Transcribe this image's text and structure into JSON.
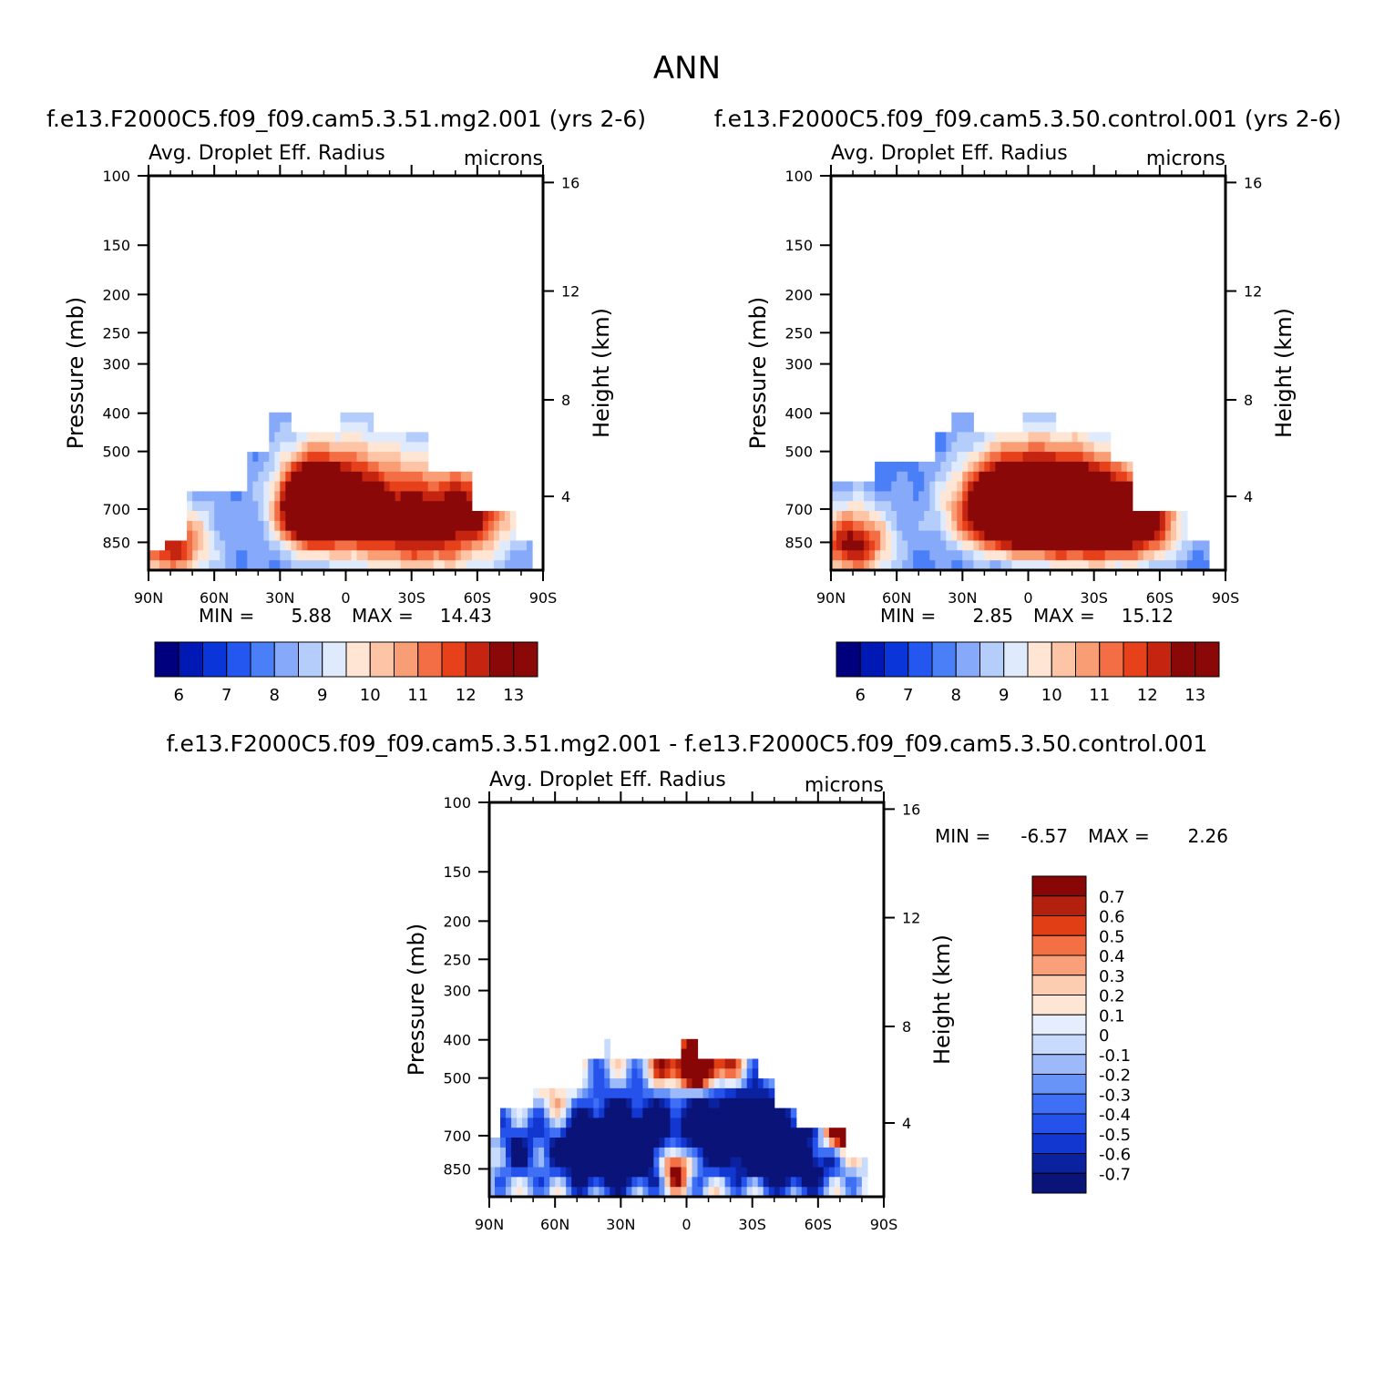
{
  "title": "ANN",
  "colors": {
    "abs": [
      "#00007f",
      "#0018b4",
      "#0a36d9",
      "#2456f0",
      "#4a7ff7",
      "#86a9fa",
      "#b5cdfb",
      "#dfeafc",
      "#ffe6d4",
      "#fdc4a5",
      "#f99e74",
      "#f36e44",
      "#e6411b",
      "#c42410",
      "#8a0808"
    ],
    "diff": [
      "#0a1378",
      "#0a22a0",
      "#1236d0",
      "#2452ea",
      "#3f6ff4",
      "#6893f7",
      "#9cb9fa",
      "#c8dbfc",
      "#e6eefd",
      "#ffe6d4",
      "#fdcdb2",
      "#f9a07a",
      "#f36f44",
      "#e23e16",
      "#b3210e",
      "#880606"
    ]
  },
  "chart_data": [
    {
      "type": "heatmap",
      "panel": "case",
      "title": "f.e13.F2000C5.f09_f09.cam5.3.51.mg2.001 (yrs 2-6)",
      "subtitle_left": "Avg. Droplet Eff. Radius",
      "subtitle_right": "microns",
      "xlabel": "",
      "ylabel": "Pressure (mb)",
      "ylabel_right": "Height (km)",
      "x_ticklabels": [
        "90N",
        "60N",
        "30N",
        "0",
        "30S",
        "60S",
        "90S"
      ],
      "y_ticklabels": [
        "100",
        "150",
        "200",
        "250",
        "300",
        "400",
        "500",
        "700",
        "850"
      ],
      "y_right_ticklabels": [
        "16",
        "12",
        "8",
        "4"
      ],
      "x": [
        90,
        60,
        30,
        0,
        -30,
        -60,
        -90
      ],
      "pressure_levels": [
        100,
        150,
        200,
        250,
        300,
        400,
        500,
        700,
        850
      ],
      "min_label": "MIN =",
      "min_value": "5.88",
      "max_label": "MAX =",
      "max_value": "14.43",
      "colorbar_ticks": [
        "6",
        "7",
        "8",
        "9",
        "10",
        "11",
        "12",
        "13"
      ],
      "levels": [
        6,
        6.5,
        7,
        7.5,
        8,
        8.5,
        9,
        9.5,
        10,
        10.5,
        11,
        11.5,
        12,
        12.5,
        13,
        13.5
      ],
      "blobs": [
        {
          "lat": 18,
          "p": 690,
          "amp": 7.5,
          "slat": 9,
          "sp": 110
        },
        {
          "lat": 2,
          "p": 680,
          "amp": 5.5,
          "slat": 14,
          "sp": 130
        },
        {
          "lat": -35,
          "p": 760,
          "amp": 5.3,
          "slat": 22,
          "sp": 160
        },
        {
          "lat": 80,
          "p": 860,
          "amp": 4.5,
          "slat": 12,
          "sp": 120
        },
        {
          "lat": -60,
          "p": 700,
          "amp": 2.5,
          "slat": 10,
          "sp": 100
        }
      ],
      "base_value": 8.0,
      "top_profile": [
        {
          "lat": 90,
          "p": 880
        },
        {
          "lat": 82,
          "p": 880
        },
        {
          "lat": 82,
          "p": 820
        },
        {
          "lat": 73,
          "p": 820
        },
        {
          "lat": 73,
          "p": 630
        },
        {
          "lat": 45,
          "p": 630
        },
        {
          "lat": 45,
          "p": 500
        },
        {
          "lat": 36,
          "p": 500
        },
        {
          "lat": 36,
          "p": 400
        },
        {
          "lat": 26,
          "p": 400
        },
        {
          "lat": 26,
          "p": 450
        },
        {
          "lat": 2,
          "p": 450
        },
        {
          "lat": 2,
          "p": 400
        },
        {
          "lat": -12,
          "p": 400
        },
        {
          "lat": -12,
          "p": 450
        },
        {
          "lat": -37,
          "p": 450
        },
        {
          "lat": -37,
          "p": 560
        },
        {
          "lat": -57,
          "p": 560
        },
        {
          "lat": -57,
          "p": 700
        },
        {
          "lat": -77,
          "p": 700
        },
        {
          "lat": -77,
          "p": 820
        },
        {
          "lat": -86,
          "p": 820
        },
        {
          "lat": -86,
          "p": 1000
        }
      ]
    },
    {
      "type": "heatmap",
      "panel": "control",
      "title": "f.e13.F2000C5.f09_f09.cam5.3.50.control.001 (yrs 2-6)",
      "subtitle_left": "Avg. Droplet Eff. Radius",
      "subtitle_right": "microns",
      "xlabel": "",
      "ylabel": "Pressure (mb)",
      "ylabel_right": "Height (km)",
      "x_ticklabels": [
        "90N",
        "60N",
        "30N",
        "0",
        "30S",
        "60S",
        "90S"
      ],
      "y_ticklabels": [
        "100",
        "150",
        "200",
        "250",
        "300",
        "400",
        "500",
        "700",
        "850"
      ],
      "y_right_ticklabels": [
        "16",
        "12",
        "8",
        "4"
      ],
      "x": [
        90,
        60,
        30,
        0,
        -30,
        -60,
        -90
      ],
      "pressure_levels": [
        100,
        150,
        200,
        250,
        300,
        400,
        500,
        700,
        850
      ],
      "min_label": "MIN =",
      "min_value": "2.85",
      "max_label": "MAX =",
      "max_value": "15.12",
      "colorbar_ticks": [
        "6",
        "7",
        "8",
        "9",
        "10",
        "11",
        "12",
        "13"
      ],
      "levels": [
        6,
        6.5,
        7,
        7.5,
        8,
        8.5,
        9,
        9.5,
        10,
        10.5,
        11,
        11.5,
        12,
        12.5,
        13,
        13.5
      ],
      "blobs": [
        {
          "lat": 10,
          "p": 700,
          "amp": 8.0,
          "slat": 16,
          "sp": 120
        },
        {
          "lat": -30,
          "p": 740,
          "amp": 7.0,
          "slat": 18,
          "sp": 140
        },
        {
          "lat": -10,
          "p": 680,
          "amp": 5.0,
          "slat": 18,
          "sp": 130
        },
        {
          "lat": 80,
          "p": 860,
          "amp": 5.0,
          "slat": 12,
          "sp": 120
        },
        {
          "lat": -55,
          "p": 760,
          "amp": 3.0,
          "slat": 12,
          "sp": 120
        }
      ],
      "base_value": 7.8,
      "top_profile": [
        {
          "lat": 90,
          "p": 600
        },
        {
          "lat": 70,
          "p": 600
        },
        {
          "lat": 70,
          "p": 520
        },
        {
          "lat": 43,
          "p": 520
        },
        {
          "lat": 43,
          "p": 450
        },
        {
          "lat": 35,
          "p": 450
        },
        {
          "lat": 35,
          "p": 400
        },
        {
          "lat": 25,
          "p": 400
        },
        {
          "lat": 25,
          "p": 450
        },
        {
          "lat": 2,
          "p": 450
        },
        {
          "lat": 2,
          "p": 400
        },
        {
          "lat": -12,
          "p": 400
        },
        {
          "lat": -12,
          "p": 450
        },
        {
          "lat": -37,
          "p": 450
        },
        {
          "lat": -37,
          "p": 520
        },
        {
          "lat": -47,
          "p": 520
        },
        {
          "lat": -47,
          "p": 690
        },
        {
          "lat": -73,
          "p": 690
        },
        {
          "lat": -73,
          "p": 820
        },
        {
          "lat": -83,
          "p": 820
        },
        {
          "lat": -83,
          "p": 1000
        }
      ]
    },
    {
      "type": "heatmap",
      "panel": "difference",
      "title": "f.e13.F2000C5.f09_f09.cam5.3.51.mg2.001 - f.e13.F2000C5.f09_f09.cam5.3.50.control.001",
      "subtitle_left": "Avg. Droplet Eff. Radius",
      "subtitle_right": "microns",
      "xlabel": "",
      "ylabel": "Pressure (mb)",
      "ylabel_right": "Height (km)",
      "x_ticklabels": [
        "90N",
        "60N",
        "30N",
        "0",
        "30S",
        "60S",
        "90S"
      ],
      "y_ticklabels": [
        "100",
        "150",
        "200",
        "250",
        "300",
        "400",
        "500",
        "700",
        "850"
      ],
      "y_right_ticklabels": [
        "16",
        "12",
        "8",
        "4"
      ],
      "x": [
        90,
        60,
        30,
        0,
        -30,
        -60,
        -90
      ],
      "pressure_levels": [
        100,
        150,
        200,
        250,
        300,
        400,
        500,
        700,
        850
      ],
      "min_label": "MIN =",
      "min_value": "-6.57",
      "max_label": "MAX =",
      "max_value": "2.26",
      "colorbar_ticks": [
        "0.7",
        "0.6",
        "0.5",
        "0.4",
        "0.3",
        "0.2",
        "0.1",
        "0",
        "-0.1",
        "-0.2",
        "-0.3",
        "-0.4",
        "-0.5",
        "-0.6",
        "-0.7"
      ],
      "levels": [
        -0.7,
        -0.6,
        -0.5,
        -0.4,
        -0.3,
        -0.2,
        -0.1,
        0,
        0.1,
        0.2,
        0.3,
        0.4,
        0.5,
        0.6,
        0.7
      ],
      "blobs": [
        {
          "lat": 35,
          "p": 760,
          "amp": -1.6,
          "slat": 18,
          "sp": 140
        },
        {
          "lat": -20,
          "p": 680,
          "amp": -1.4,
          "slat": 22,
          "sp": 130
        },
        {
          "lat": -50,
          "p": 820,
          "amp": -1.0,
          "slat": 14,
          "sp": 120
        },
        {
          "lat": 5,
          "p": 820,
          "amp": 1.5,
          "slat": 5,
          "sp": 80
        },
        {
          "lat": -5,
          "p": 470,
          "amp": 1.6,
          "slat": 12,
          "sp": 50
        },
        {
          "lat": -70,
          "p": 700,
          "amp": 1.2,
          "slat": 7,
          "sp": 60
        },
        {
          "lat": 58,
          "p": 560,
          "amp": 0.4,
          "slat": 8,
          "sp": 60
        },
        {
          "lat": 78,
          "p": 760,
          "amp": -0.6,
          "slat": 8,
          "sp": 120
        }
      ],
      "base_value": 0.05,
      "top_profile": [
        {
          "lat": 90,
          "p": 700
        },
        {
          "lat": 86,
          "p": 700
        },
        {
          "lat": 86,
          "p": 580
        },
        {
          "lat": 70,
          "p": 580
        },
        {
          "lat": 70,
          "p": 520
        },
        {
          "lat": 47,
          "p": 520
        },
        {
          "lat": 47,
          "p": 450
        },
        {
          "lat": 37,
          "p": 450
        },
        {
          "lat": 37,
          "p": 400
        },
        {
          "lat": 34,
          "p": 400
        },
        {
          "lat": 34,
          "p": 450
        },
        {
          "lat": 3,
          "p": 450
        },
        {
          "lat": 3,
          "p": 400
        },
        {
          "lat": -5,
          "p": 400
        },
        {
          "lat": -5,
          "p": 450
        },
        {
          "lat": -32,
          "p": 450
        },
        {
          "lat": -32,
          "p": 500
        },
        {
          "lat": -40,
          "p": 500
        },
        {
          "lat": -40,
          "p": 590
        },
        {
          "lat": -50,
          "p": 590
        },
        {
          "lat": -50,
          "p": 650
        },
        {
          "lat": -72,
          "p": 650
        },
        {
          "lat": -72,
          "p": 780
        },
        {
          "lat": -83,
          "p": 780
        },
        {
          "lat": -83,
          "p": 1000
        }
      ]
    }
  ]
}
